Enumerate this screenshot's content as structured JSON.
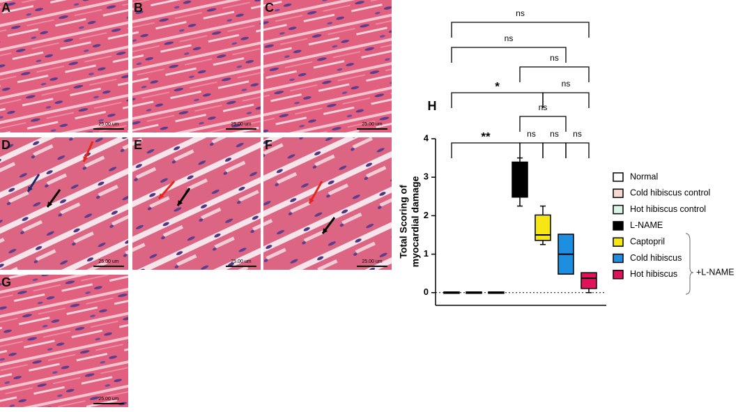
{
  "panels": [
    {
      "label": "A",
      "scale": "25.00 um"
    },
    {
      "label": "B",
      "scale": "25.00 um"
    },
    {
      "label": "C",
      "scale": "25.00 um"
    },
    {
      "label": "D",
      "scale": "25.00 um"
    },
    {
      "label": "E",
      "scale": "25.00 um"
    },
    {
      "label": "F",
      "scale": "25.00 um"
    },
    {
      "label": "G",
      "scale": "25.00 um"
    }
  ],
  "chart_data": {
    "type": "box",
    "panel_label": "H",
    "ylabel": [
      "Total Scoring of",
      "myocardial damage"
    ],
    "categories": [
      "Normal",
      "Cold hibiscus control",
      "Hot hibiscus control",
      "L-NAME",
      "Captopril",
      "Cold hibiscus",
      "Hot hibiscus"
    ],
    "colors": [
      "#ffffff",
      "#f7d9d2",
      "#d9f5e8",
      "#000000",
      "#f5e614",
      "#1e8fe0",
      "#e0125c"
    ],
    "stats": [
      [
        0,
        0,
        0,
        0,
        0
      ],
      [
        0,
        0,
        0,
        0,
        0
      ],
      [
        0,
        0,
        0,
        0,
        0
      ],
      [
        2.25,
        2.5,
        3.25,
        3.375,
        3.5
      ],
      [
        1.25,
        1.375,
        1.5,
        2.0,
        2.25
      ],
      [
        0.5,
        0.5,
        1.0,
        1.5,
        1.5
      ],
      [
        0,
        0.125,
        0.375,
        0.5,
        0.5
      ]
    ],
    "ylim": [
      -0.33,
      4
    ],
    "yticks": [
      0,
      1,
      2,
      3,
      4
    ],
    "group_label": "+L-NAME",
    "brackets": [
      {
        "from": 0,
        "to": 6,
        "label": "ns"
      },
      {
        "from": 0,
        "to": 5,
        "label": "ns"
      },
      {
        "from": 3,
        "to": 6,
        "label": "ns"
      },
      {
        "from": 0,
        "to": 4,
        "label": "*"
      },
      {
        "from": 4,
        "to": 6,
        "label": "ns"
      },
      {
        "from": 3,
        "to": 5,
        "label": "ns"
      },
      {
        "from": 0,
        "to": 3,
        "label": "**"
      },
      {
        "from": 3,
        "to": 4,
        "label": "ns"
      },
      {
        "from": 4,
        "to": 5,
        "label": "ns"
      },
      {
        "from": 5,
        "to": 6,
        "label": "ns"
      }
    ]
  }
}
